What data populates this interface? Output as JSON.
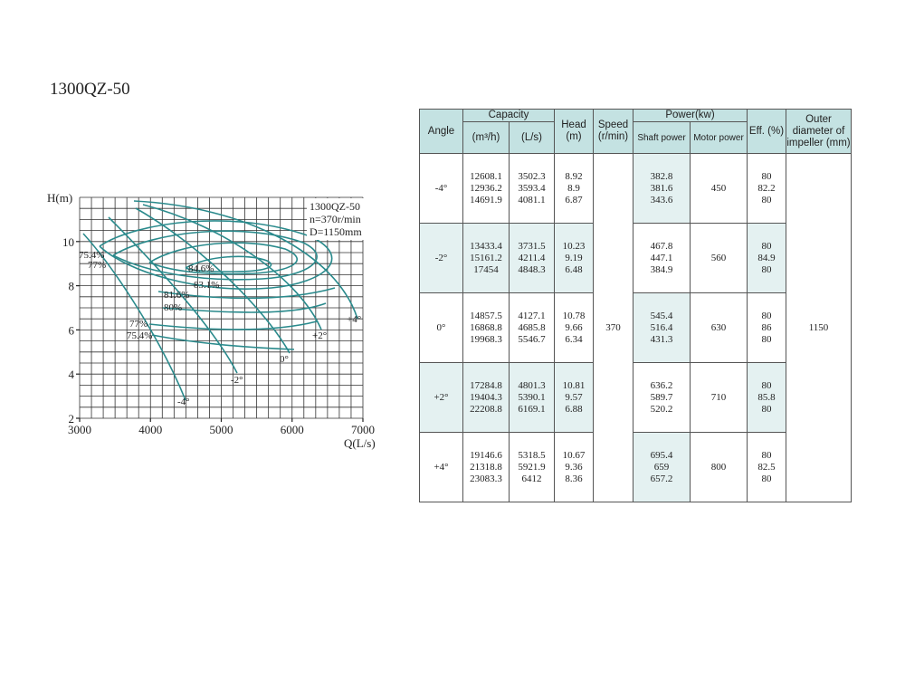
{
  "title": "1300QZ-50",
  "chart": {
    "y_label": "H(m)",
    "x_label": "Q(L/s)",
    "xlim": [
      3000,
      7000
    ],
    "ylim": [
      2,
      12
    ],
    "xticks": [
      3000,
      4000,
      5000,
      6000,
      7000
    ],
    "yticks": [
      2,
      4,
      6,
      8,
      10
    ],
    "info": [
      "1300QZ-50",
      "n=370r/min",
      "D=1150mm"
    ],
    "efficiency_labels": [
      "75.4%",
      "77%",
      "84.6%",
      "83.1%",
      "81.6%",
      "80%",
      "77%",
      "75.4%"
    ],
    "angle_labels": [
      "+4°",
      "+2°",
      "0°",
      "-2°",
      "-4°"
    ]
  },
  "table": {
    "headers": {
      "angle": "Angle",
      "capacity": "Capacity",
      "capacity_m3h": "(m³/h)",
      "capacity_ls": "(L/s)",
      "head": "Head (m)",
      "speed": "Speed (r/min)",
      "power": "Power(kw)",
      "shaft_power": "Shaft power",
      "motor_power": "Motor power",
      "efficiency": "Eff. (%)",
      "outer_diameter": "Outer diameter of impeller (mm)"
    },
    "speed": 370,
    "outer_diameter": 1150,
    "rows": [
      {
        "angle": "-4°",
        "capacity_m3h": [
          12608.1,
          12936.2,
          14691.9
        ],
        "capacity_ls": [
          3502.3,
          3593.4,
          4081.1
        ],
        "head": [
          8.92,
          8.9,
          6.87
        ],
        "shaft_power": [
          382.8,
          381.6,
          343.6
        ],
        "motor_power": 450,
        "efficiency": [
          80,
          82.2,
          80
        ]
      },
      {
        "angle": "-2°",
        "capacity_m3h": [
          13433.4,
          15161.2,
          17454
        ],
        "capacity_ls": [
          3731.5,
          4211.4,
          4848.3
        ],
        "head": [
          10.23,
          9.19,
          6.48
        ],
        "shaft_power": [
          467.8,
          447.1,
          384.9
        ],
        "motor_power": 560,
        "efficiency": [
          80,
          84.9,
          80
        ]
      },
      {
        "angle": "0°",
        "capacity_m3h": [
          14857.5,
          16868.8,
          19968.3
        ],
        "capacity_ls": [
          4127.1,
          4685.8,
          5546.7
        ],
        "head": [
          10.78,
          9.66,
          6.34
        ],
        "shaft_power": [
          545.4,
          516.4,
          431.3
        ],
        "motor_power": 630,
        "efficiency": [
          80,
          86,
          80
        ]
      },
      {
        "angle": "+2°",
        "capacity_m3h": [
          17284.8,
          19404.3,
          22208.8
        ],
        "capacity_ls": [
          4801.3,
          5390.1,
          6169.1
        ],
        "head": [
          10.81,
          9.57,
          6.88
        ],
        "shaft_power": [
          636.2,
          589.7,
          520.2
        ],
        "motor_power": 710,
        "efficiency": [
          80,
          85.8,
          80
        ]
      },
      {
        "angle": "+4°",
        "capacity_m3h": [
          19146.6,
          21318.8,
          23083.3
        ],
        "capacity_ls": [
          5318.5,
          5921.9,
          6412
        ],
        "head": [
          10.67,
          9.36,
          8.36
        ],
        "shaft_power": [
          695.4,
          659,
          657.2
        ],
        "motor_power": 800,
        "efficiency": [
          80,
          82.5,
          80
        ]
      }
    ]
  }
}
